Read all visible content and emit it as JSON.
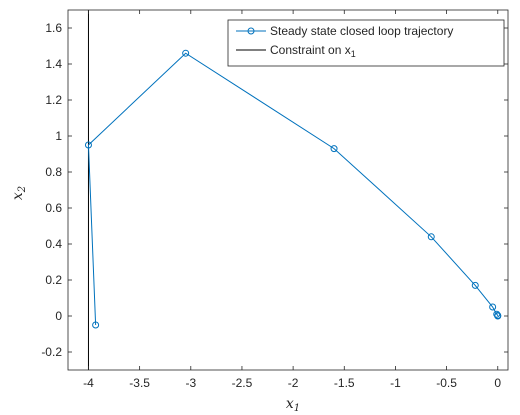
{
  "chart_data": {
    "type": "line",
    "title": "",
    "xlabel": "x",
    "xlabel_sub": "1",
    "ylabel": "x",
    "ylabel_sub": "2",
    "xlim": [
      -4.2,
      0.1
    ],
    "ylim": [
      -0.3,
      1.7
    ],
    "xticks": [
      -4,
      -3.5,
      -3,
      -2.5,
      -2,
      -1.5,
      -1,
      -0.5,
      0
    ],
    "xtick_labels": [
      "-4",
      "-3.5",
      "-3",
      "-2.5",
      "-2",
      "-1.5",
      "-1",
      "-0.5",
      "0"
    ],
    "yticks": [
      -0.2,
      0,
      0.2,
      0.4,
      0.6,
      0.8,
      1,
      1.2,
      1.4,
      1.6
    ],
    "ytick_labels": [
      "-0.2",
      "0",
      "0.2",
      "0.4",
      "0.6",
      "0.8",
      "1",
      "1.2",
      "1.4",
      "1.6"
    ],
    "grid": false,
    "legend_position": "top-right",
    "series": [
      {
        "name": "Steady state closed loop trajectory",
        "color": "#0072BD",
        "marker": "circle",
        "x": [
          -3.93,
          -4.0,
          -3.05,
          -1.6,
          -0.65,
          -0.22,
          -0.05,
          -0.01,
          0.0,
          0.0
        ],
        "y": [
          -0.05,
          0.95,
          1.46,
          0.93,
          0.44,
          0.17,
          0.05,
          0.01,
          0.003,
          0.0
        ]
      },
      {
        "name": "Constraint on x",
        "name_sub": "1",
        "color": "#000000",
        "marker": "none",
        "x": [
          -4.0,
          -4.0
        ],
        "y": [
          -0.3,
          1.7
        ]
      }
    ]
  }
}
